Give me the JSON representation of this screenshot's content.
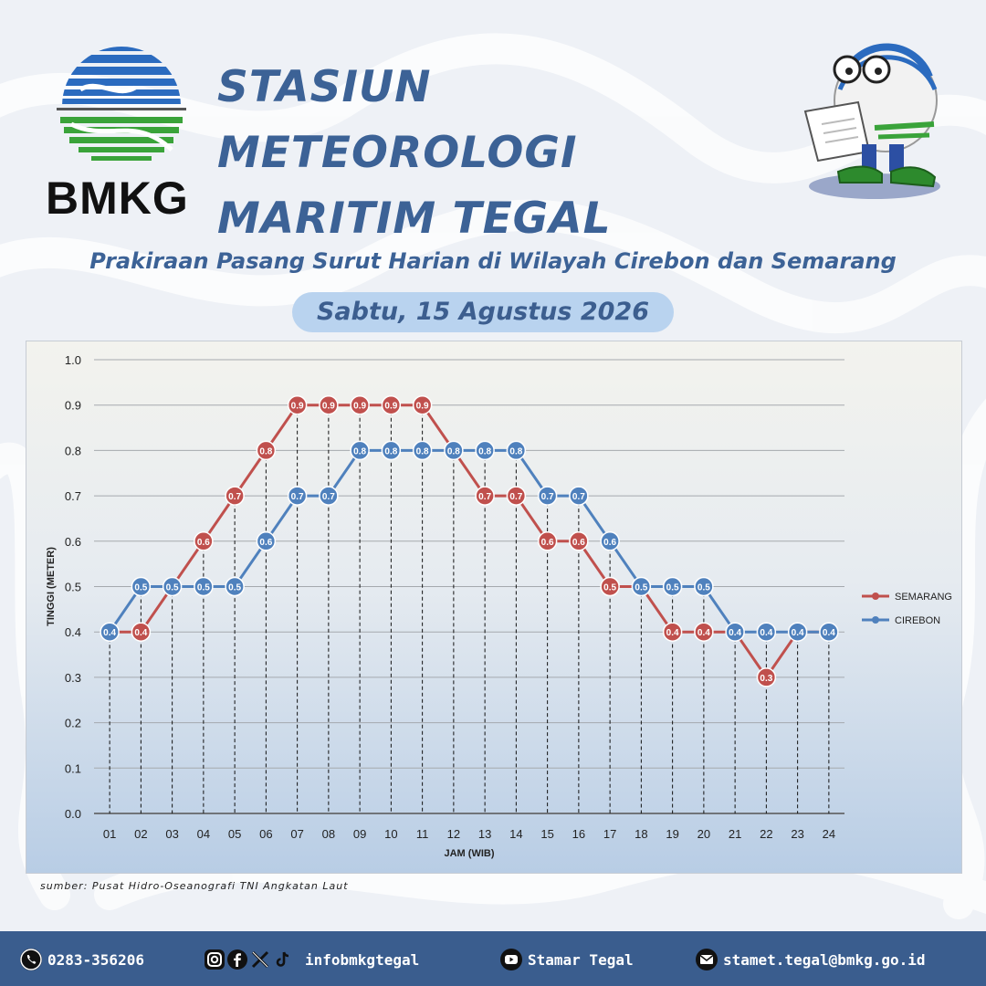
{
  "header": {
    "logo_text": "BMKG",
    "title_line1": "STASIUN METEOROLOGI",
    "title_line2": "MARITIM TEGAL"
  },
  "subtitle": "Prakiraan Pasang Surut Harian di Wilayah Cirebon dan Semarang",
  "date": "Sabtu, 15 Agustus 2026",
  "chart_data": {
    "type": "line",
    "title": "",
    "xlabel": "JAM (WIB)",
    "ylabel": "TINGGI (METER)",
    "ylim": [
      0,
      1.0
    ],
    "yticks": [
      "0.0",
      "0.1",
      "0.2",
      "0.3",
      "0.4",
      "0.5",
      "0.6",
      "0.7",
      "0.8",
      "0.9",
      "1.0"
    ],
    "categories": [
      "01",
      "02",
      "03",
      "04",
      "05",
      "06",
      "07",
      "08",
      "09",
      "10",
      "11",
      "12",
      "13",
      "14",
      "15",
      "16",
      "17",
      "18",
      "19",
      "20",
      "21",
      "22",
      "23",
      "24"
    ],
    "grid": true,
    "legend": "right",
    "series": [
      {
        "name": "SEMARANG",
        "color": "#c0504d",
        "values": [
          0.4,
          0.4,
          0.5,
          0.6,
          0.7,
          0.8,
          0.9,
          0.9,
          0.9,
          0.9,
          0.9,
          0.8,
          0.7,
          0.7,
          0.6,
          0.6,
          0.5,
          0.5,
          0.4,
          0.4,
          0.4,
          0.3,
          0.4,
          0.4
        ],
        "labeled": [
          false,
          true,
          false,
          true,
          true,
          true,
          true,
          true,
          true,
          true,
          true,
          false,
          true,
          true,
          true,
          true,
          true,
          false,
          true,
          true,
          false,
          true,
          false,
          false
        ]
      },
      {
        "name": "CIREBON",
        "color": "#4f81bd",
        "values": [
          0.4,
          0.5,
          0.5,
          0.5,
          0.5,
          0.6,
          0.7,
          0.7,
          0.8,
          0.8,
          0.8,
          0.8,
          0.8,
          0.8,
          0.7,
          0.7,
          0.6,
          0.5,
          0.5,
          0.5,
          0.4,
          0.4,
          0.4,
          0.4
        ],
        "labeled": [
          true,
          true,
          true,
          true,
          true,
          true,
          true,
          true,
          true,
          true,
          true,
          true,
          true,
          true,
          true,
          true,
          true,
          true,
          true,
          true,
          true,
          true,
          true,
          true
        ]
      }
    ]
  },
  "source": "sumber: Pusat Hidro-Oseanografi TNI Angkatan Laut",
  "footer": {
    "phone": "0283-356206",
    "social_handle": "infobmkgtegal",
    "youtube": "Stamar Tegal",
    "email": "stamet.tegal@bmkg.go.id"
  }
}
